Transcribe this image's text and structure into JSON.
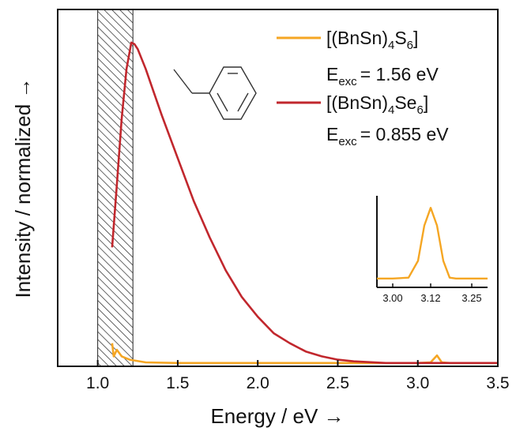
{
  "chart_data": {
    "type": "line",
    "title": "",
    "xlabel": "Energy / eV →",
    "ylabel": "Intensity / normalized →",
    "xlim": [
      0.75,
      3.5
    ],
    "ylim": [
      0,
      1.08
    ],
    "xticks": [
      "1.0",
      "1.5",
      "2.0",
      "2.5",
      "3.0",
      "3.5"
    ],
    "yticks_visible": false,
    "shaded_region": {
      "x": [
        1.0,
        1.22
      ],
      "pattern": "hatched"
    },
    "legend_position": "top-right",
    "series": [
      {
        "name": "[(BnSn)4S6]",
        "legend_base": "[(BnSn)",
        "legend_sub1": "4",
        "legend_mid": "S",
        "legend_sub2": "6",
        "legend_end": "]",
        "excitation_prefix": "E",
        "excitation_sub": "exc",
        "excitation_value": "= 1.56 eV",
        "color": "#F5A623",
        "x": [
          1.09,
          1.1,
          1.12,
          1.15,
          1.2,
          1.3,
          1.5,
          2.0,
          2.5,
          3.0,
          3.08,
          3.12,
          3.15,
          3.2,
          3.5
        ],
        "y": [
          0.07,
          0.03,
          0.05,
          0.03,
          0.02,
          0.012,
          0.01,
          0.01,
          0.01,
          0.01,
          0.012,
          0.033,
          0.012,
          0.01,
          0.01
        ]
      },
      {
        "name": "[(BnSn)4Se6]",
        "legend_base": "[(BnSn)",
        "legend_sub1": "4",
        "legend_mid": "Se",
        "legend_sub2": "6",
        "legend_end": "]",
        "excitation_prefix": "E",
        "excitation_sub": "exc",
        "excitation_value": "= 0.855 eV",
        "color": "#C1272D",
        "x": [
          1.09,
          1.12,
          1.15,
          1.18,
          1.21,
          1.23,
          1.25,
          1.3,
          1.35,
          1.4,
          1.5,
          1.6,
          1.7,
          1.8,
          1.9,
          2.0,
          2.1,
          2.2,
          2.3,
          2.4,
          2.5,
          2.6,
          2.8,
          3.0,
          3.2,
          3.5
        ],
        "y": [
          0.36,
          0.55,
          0.75,
          0.9,
          0.98,
          0.975,
          0.96,
          0.9,
          0.83,
          0.76,
          0.63,
          0.5,
          0.39,
          0.29,
          0.21,
          0.15,
          0.1,
          0.07,
          0.045,
          0.03,
          0.02,
          0.015,
          0.01,
          0.01,
          0.01,
          0.01
        ]
      }
    ],
    "inset": {
      "xlim": [
        2.95,
        3.3
      ],
      "xticks": [
        "3.00",
        "3.12",
        "3.25"
      ],
      "color": "#F5A623",
      "x": [
        2.95,
        3.0,
        3.05,
        3.08,
        3.1,
        3.12,
        3.14,
        3.16,
        3.18,
        3.2,
        3.25,
        3.3
      ],
      "y": [
        0.1,
        0.1,
        0.11,
        0.3,
        0.7,
        0.9,
        0.7,
        0.3,
        0.11,
        0.1,
        0.1,
        0.1
      ]
    }
  }
}
